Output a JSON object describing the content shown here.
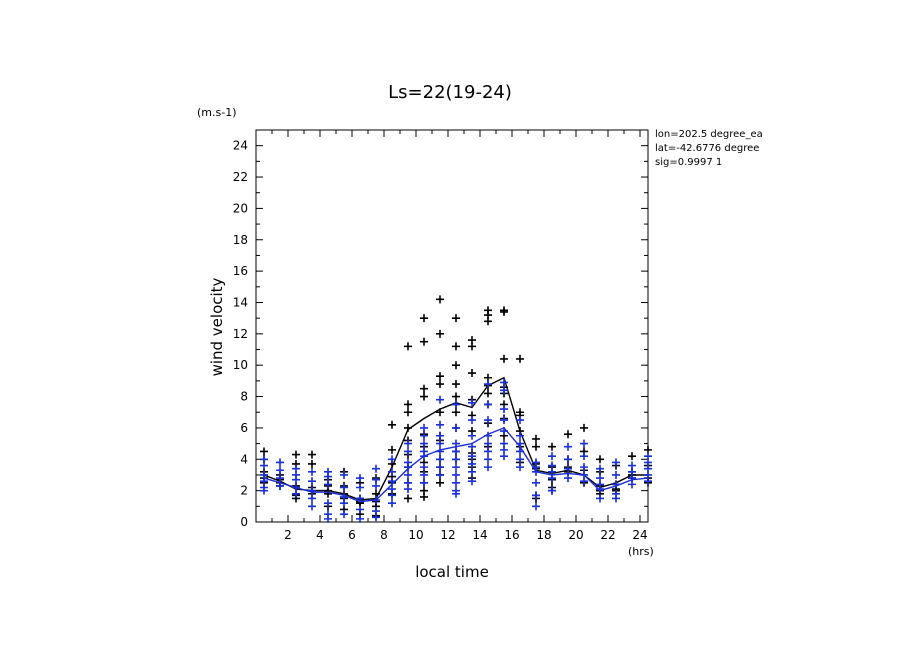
{
  "chart_data": {
    "type": "scatter",
    "title": "Ls=22(19-24)",
    "xlabel": "local time",
    "ylabel": "wind velocity",
    "x_unit": "(hrs)",
    "y_unit": "(m.s-1)",
    "xlim": [
      0,
      24.5
    ],
    "ylim": [
      0,
      25
    ],
    "xticks": [
      2,
      4,
      6,
      8,
      10,
      12,
      14,
      16,
      18,
      20,
      22,
      24
    ],
    "yticks": [
      0,
      2,
      4,
      6,
      8,
      10,
      12,
      14,
      16,
      18,
      20,
      22,
      24
    ],
    "info": [
      "lon=202.5 degree_ea",
      "lat=-42.6776 degree",
      "sig=0.9997 1"
    ],
    "x": [
      0.5,
      1.5,
      2.5,
      3.5,
      4.5,
      5.5,
      6.5,
      7.5,
      8.5,
      9.5,
      10.5,
      11.5,
      12.5,
      13.5,
      14.5,
      15.5,
      16.5,
      17.5,
      18.5,
      19.5,
      20.5,
      21.5,
      22.5,
      23.5,
      24.5
    ],
    "series": [
      {
        "name": "black",
        "color": "#000000",
        "mean": [
          3.0,
          2.6,
          2.1,
          2.0,
          2.0,
          1.8,
          1.4,
          1.5,
          3.5,
          5.9,
          6.6,
          7.2,
          7.6,
          7.3,
          8.7,
          9.2,
          5.8,
          3.3,
          3.1,
          3.3,
          3.0,
          2.2,
          2.5,
          3.0,
          3.0
        ],
        "points": [
          [
            4.5,
            4.0,
            3.2,
            2.8,
            2.5
          ],
          [
            3.0,
            2.7,
            2.5,
            2.3
          ],
          [
            4.3,
            3.7,
            2.3,
            1.7,
            1.5
          ],
          [
            4.3,
            3.7,
            2.2,
            2.0,
            1.8
          ],
          [
            2.7,
            2.3,
            2.0,
            1.8,
            1.0
          ],
          [
            3.2,
            2.3,
            1.8,
            1.5,
            0.8
          ],
          [
            2.5,
            1.5,
            1.3,
            1.2,
            0.5
          ],
          [
            2.8,
            1.8,
            1.3,
            1.0,
            0.4
          ],
          [
            6.2,
            4.6,
            3.7,
            2.9,
            2.5,
            1.8
          ],
          [
            11.2,
            7.5,
            7.0,
            6.0,
            5.2,
            4.3,
            3.5,
            2.5,
            1.5
          ],
          [
            13.0,
            11.5,
            8.5,
            8.0,
            5.6,
            4.8,
            3.8,
            3.2,
            2.5,
            2.0,
            1.6
          ],
          [
            14.2,
            12.0,
            9.3,
            8.8,
            7.0,
            5.5,
            5.2,
            4.0,
            3.5,
            3.0,
            2.5
          ],
          [
            13.0,
            11.2,
            10.0,
            8.8,
            8.0,
            7.5,
            7.0,
            6.0,
            4.5,
            4.0
          ],
          [
            11.6,
            11.2,
            9.5,
            7.8,
            6.8,
            5.8,
            4.4,
            4.0,
            3.5,
            2.8
          ],
          [
            13.5,
            13.2,
            12.8,
            9.2,
            8.7,
            8.2,
            7.5,
            6.3,
            4.8
          ],
          [
            13.5,
            13.4,
            10.4,
            8.6,
            8.2,
            7.5,
            6.6,
            5.5
          ],
          [
            10.4,
            7.0,
            6.8,
            5.8,
            4.8,
            3.8
          ],
          [
            5.3,
            4.8,
            3.7,
            3.4,
            1.7,
            1.5
          ],
          [
            4.8,
            3.5,
            2.7,
            2.2,
            2.0
          ],
          [
            5.6,
            4.0,
            3.5,
            3.2
          ],
          [
            6.0,
            4.5,
            3.3,
            2.5
          ],
          [
            4.0,
            3.2,
            2.3,
            2.0,
            1.8
          ],
          [
            3.6,
            2.4,
            2.1,
            2.0
          ],
          [
            4.2,
            3.2,
            3.0,
            2.8
          ],
          [
            4.6,
            3.6,
            2.8,
            2.5
          ]
        ]
      },
      {
        "name": "blue",
        "color": "#1a2fd6",
        "mean": [
          2.8,
          2.5,
          2.2,
          1.9,
          1.9,
          1.7,
          1.3,
          1.4,
          2.4,
          3.4,
          4.2,
          4.6,
          4.8,
          5.0,
          5.6,
          6.0,
          4.8,
          3.2,
          3.0,
          3.1,
          3.0,
          2.0,
          2.3,
          2.7,
          2.8
        ],
        "points": [
          [
            4.0,
            3.6,
            3.0,
            2.6,
            2.2,
            2.0
          ],
          [
            3.8,
            3.3,
            2.8,
            2.3
          ],
          [
            3.4,
            3.0,
            2.7,
            2.2,
            1.8
          ],
          [
            3.2,
            2.6,
            2.0,
            1.5,
            1.0
          ],
          [
            3.2,
            2.9,
            2.4,
            1.2,
            0.5,
            0.2
          ],
          [
            3.0,
            2.2,
            1.6,
            1.2,
            0.5
          ],
          [
            2.8,
            2.2,
            1.5,
            0.8,
            0.2
          ],
          [
            3.4,
            2.7,
            2.3,
            1.4,
            0.7,
            0.3
          ],
          [
            4.0,
            3.2,
            2.6,
            2.1,
            1.7,
            1.2
          ],
          [
            5.0,
            4.5,
            3.8,
            3.5,
            3.0,
            2.5,
            2.1
          ],
          [
            6.0,
            5.5,
            5.0,
            4.5,
            4.2,
            3.5,
            3.0,
            2.5
          ],
          [
            7.8,
            6.2,
            5.5,
            5.0,
            4.5,
            4.0,
            3.5,
            3.0
          ],
          [
            7.5,
            6.0,
            5.0,
            4.5,
            4.0,
            3.5,
            3.0,
            2.5,
            2.0,
            1.8
          ],
          [
            7.6,
            6.5,
            5.5,
            4.8,
            4.2,
            3.7,
            3.2,
            2.6
          ],
          [
            8.8,
            7.5,
            6.5,
            5.5,
            5.0,
            4.5,
            4.0,
            3.5
          ],
          [
            8.9,
            8.4,
            7.2,
            6.5,
            5.8,
            5.0,
            4.6,
            4.2
          ],
          [
            6.5,
            5.5,
            5.0,
            4.5,
            4.0,
            3.5
          ],
          [
            3.8,
            3.5,
            3.2,
            2.5,
            1.7,
            1.0
          ],
          [
            4.2,
            3.6,
            3.2,
            2.8,
            2.0
          ],
          [
            4.8,
            4.0,
            3.4,
            2.8
          ],
          [
            5.0,
            4.2,
            3.5,
            3.0,
            2.6
          ],
          [
            3.4,
            2.8,
            2.4,
            2.1,
            1.5
          ],
          [
            3.8,
            3.0,
            2.4,
            1.8,
            1.5
          ],
          [
            3.6,
            3.2,
            2.8,
            2.4
          ],
          [
            4.2,
            3.8,
            3.4,
            3.0,
            2.6
          ]
        ]
      }
    ]
  }
}
